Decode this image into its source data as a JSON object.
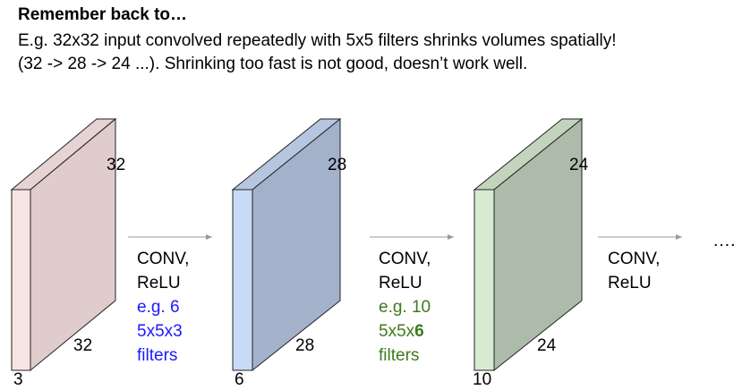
{
  "title": "Remember back to…",
  "body_lines": [
    "E.g. 32x32 input convolved repeatedly with 5x5 filters shrinks volumes spatially!",
    "(32 -> 28 -> 24 ...). Shrinking too fast is not good, doesn’t work well."
  ],
  "volumes": [
    {
      "height": "32",
      "width": "32",
      "depth": "3",
      "front_color": "#f9e4e4",
      "side_color": "#e0cccc"
    },
    {
      "height": "28",
      "width": "28",
      "depth": "6",
      "front_color": "#c9daf8",
      "side_color": "#a4b1cb"
    },
    {
      "height": "24",
      "width": "24",
      "depth": "10",
      "front_color": "#d9ead3",
      "side_color": "#adbbaa"
    }
  ],
  "operations": [
    {
      "line1": "CONV,",
      "line2": "ReLU",
      "note1": "e.g. 6",
      "note2": "5x5x3",
      "note3": "filters",
      "note_color": "#1a1aff"
    },
    {
      "line1": "CONV,",
      "line2": "ReLU",
      "note1": "e.g. 10",
      "note2_prefix": "5x5x",
      "note2_bold": "6",
      "note3": "filters",
      "note_color": "#3d7a1f"
    },
    {
      "line1": "CONV,",
      "line2": "ReLU"
    }
  ],
  "ellipsis": "….",
  "arrow_color": "#999999"
}
